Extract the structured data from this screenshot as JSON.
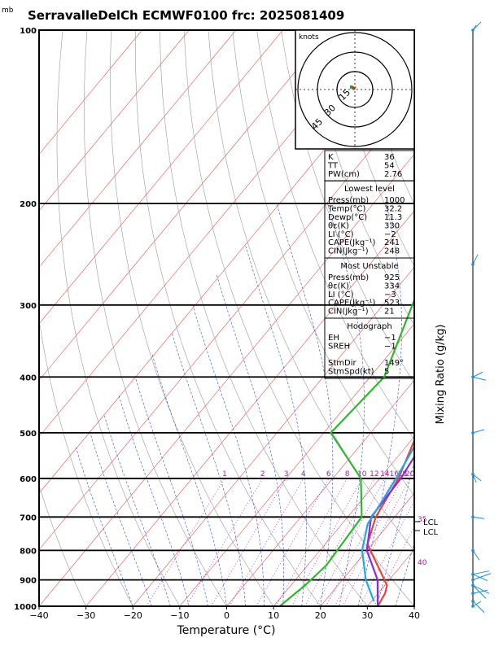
{
  "header": {
    "units_label": "mb",
    "title": "SerravalleDelCh ECMWF0100 frc: 2025081409"
  },
  "axes": {
    "x_title": "Temperature (°C)",
    "mixing_title": "Mixing Ratio (g/kg)"
  },
  "chart_data": {
    "type": "line",
    "title": "SerravalleDelCh ECMWF0100 frc: 2025081409",
    "xlabel": "Temperature (°C)",
    "ylabel": "mb",
    "xlim": [
      -40,
      40
    ],
    "ylim": [
      1000,
      100
    ],
    "y_log_scale": true,
    "x_ticks": [
      -40,
      -30,
      -20,
      -10,
      0,
      10,
      20,
      30,
      40
    ],
    "p_ticks": [
      100,
      200,
      300,
      400,
      500,
      600,
      700,
      800,
      900,
      1000
    ],
    "p_bold_lines": [
      200,
      300,
      400,
      500,
      600,
      700,
      800,
      900
    ],
    "mixing_ratio_labels": [
      1,
      2,
      3,
      4,
      6,
      8,
      10,
      12,
      14,
      16,
      18,
      20,
      25,
      30
    ],
    "series": [
      {
        "key": "temperature",
        "color": "#e8463c",
        "points": [
          [
            32.2,
            1000
          ],
          [
            31.5,
            950
          ],
          [
            30.5,
            920
          ],
          [
            25,
            850
          ],
          [
            19,
            780
          ],
          [
            16,
            700
          ],
          [
            14,
            600
          ],
          [
            10,
            500
          ],
          [
            6,
            400
          ],
          [
            3.5,
            300
          ],
          [
            0.5,
            250
          ],
          [
            2,
            200
          ],
          [
            9,
            100
          ]
        ]
      },
      {
        "key": "dewpoint",
        "color": "#2eb82e",
        "points": [
          [
            11.3,
            1000
          ],
          [
            13,
            920
          ],
          [
            14,
            850
          ],
          [
            13,
            700
          ],
          [
            6,
            600
          ],
          [
            -8.5,
            500
          ],
          [
            -7,
            400
          ],
          [
            -18,
            250
          ],
          [
            -17,
            200
          ],
          [
            -13,
            100
          ]
        ]
      },
      {
        "key": "parcel",
        "color": "#8a2be2",
        "points": [
          [
            32.2,
            1000
          ],
          [
            27.5,
            900
          ],
          [
            20,
            800
          ],
          [
            15,
            700
          ],
          [
            14.5,
            600
          ],
          [
            12.5,
            500
          ],
          [
            8.5,
            400
          ],
          [
            2.5,
            300
          ],
          [
            -7,
            200
          ],
          [
            -28,
            100
          ]
        ]
      },
      {
        "key": "virtual",
        "color": "#22a8e8",
        "points": [
          [
            30.5,
            980
          ],
          [
            25,
            900
          ],
          [
            19,
            800
          ],
          [
            15.5,
            720
          ],
          [
            13.5,
            600
          ],
          [
            11,
            500
          ],
          [
            6.5,
            400
          ],
          [
            0,
            300
          ],
          [
            -8,
            200
          ],
          [
            -28,
            110
          ]
        ]
      }
    ],
    "annotations": {
      "lcl_label": "LCL",
      "lfc_label": "LCL",
      "temp_label_35": "35",
      "temp_label_40": "40"
    }
  },
  "hodograph": {
    "units": "knots",
    "rings": [
      "15",
      "30",
      "45"
    ]
  },
  "indices": {
    "top": [
      {
        "label": "K",
        "value": "36"
      },
      {
        "label": "TT",
        "value": "54"
      },
      {
        "label": "PW(cm)",
        "value": "2.76"
      }
    ],
    "lowest": {
      "title": "Lowest level",
      "rows": [
        {
          "label": "Press(mb)",
          "value": "1000"
        },
        {
          "label": "Temp(°C)",
          "value": "32.2"
        },
        {
          "label": "Dewp(°C)",
          "value": "11.3"
        },
        {
          "label": "θε(K)",
          "value": "330"
        },
        {
          "label": "LI (°C)",
          "value": "−2"
        },
        {
          "label": "CAPE(Jkg⁻¹)",
          "value": "241"
        },
        {
          "label": "CIN(Jkg⁻¹)",
          "value": "248"
        }
      ]
    },
    "unstable": {
      "title": "Most Unstable",
      "rows": [
        {
          "label": "Press(mb)",
          "value": "925"
        },
        {
          "label": "θε(K)",
          "value": "334"
        },
        {
          "label": "LI (°C)",
          "value": "−3"
        },
        {
          "label": "CAPE(Jkg⁻¹)",
          "value": "523"
        },
        {
          "label": "CIN(Jkg⁻¹)",
          "value": "21"
        }
      ]
    },
    "hodo": {
      "title": "Hodograph",
      "rows": [
        {
          "label": "EH",
          "value": "−1"
        },
        {
          "label": "SREH",
          "value": "−1"
        },
        {
          "label": "",
          "value": ""
        },
        {
          "label": "StmDir",
          "value": "149°"
        },
        {
          "label": "StmSpd(kt)",
          "value": "5"
        }
      ]
    }
  }
}
